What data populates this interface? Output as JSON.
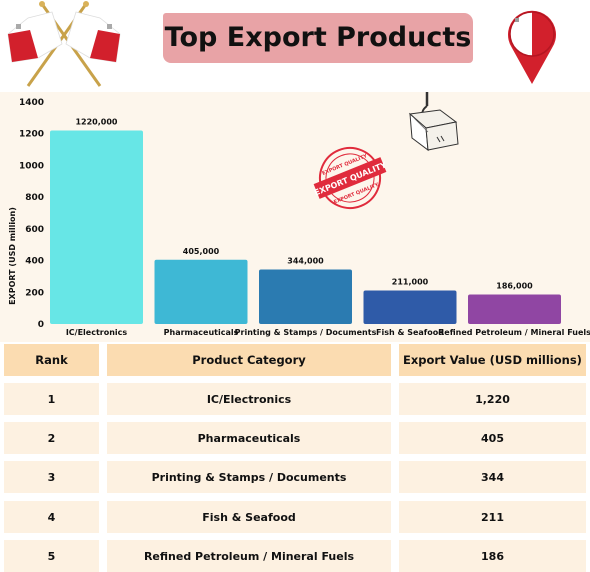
{
  "title": "Top Export Products",
  "chart_data": {
    "type": "bar",
    "ylabel": "EXPORT (USD million)",
    "xlabel": "",
    "ylim": [
      0,
      1400
    ],
    "yticks": [
      0,
      200,
      400,
      600,
      800,
      1000,
      1200,
      1400
    ],
    "categories": [
      "IC/Electronics",
      "Pharmaceuticals",
      "Printing & Stamps / Documents",
      "Fish & Seafood",
      "Refined Petroleum / Mineral Fuels"
    ],
    "values": [
      1220,
      405,
      344,
      211,
      186
    ],
    "data_labels": [
      "1220,000",
      "405,000",
      "344,000",
      "211,000",
      "186,000"
    ],
    "colors": [
      "#67e6e6",
      "#3eb8d5",
      "#2b7bb1",
      "#2f5ba8",
      "#9046a3"
    ],
    "grid": false
  },
  "stamp": {
    "top": "EXPORT QUALITY",
    "middle": "EXPORT QUALITY",
    "bottom": "EXPORT QUALITY",
    "color": "#e02b3c"
  },
  "decorations": {
    "flags_icon": "crossed-malta-flags",
    "pin_icon": "malta-flag-map-pin",
    "crane_icon": "crane-hook-with-box"
  },
  "table": {
    "headers": [
      "Rank",
      "Product Category",
      "Export Value (USD millions)"
    ],
    "rows": [
      [
        "1",
        "IC/Electronics",
        "1,220"
      ],
      [
        "2",
        "Pharmaceuticals",
        "405"
      ],
      [
        "3",
        "Printing & Stamps / Documents",
        "344"
      ],
      [
        "4",
        "Fish & Seafood",
        "211"
      ],
      [
        "5",
        "Refined Petroleum / Mineral Fuels",
        "186"
      ]
    ]
  }
}
